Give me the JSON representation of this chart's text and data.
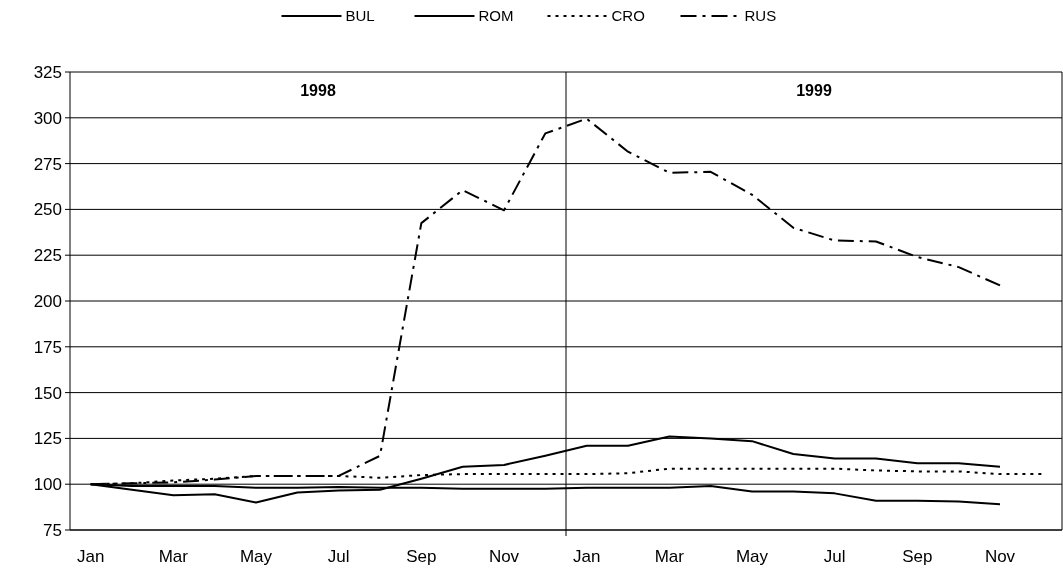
{
  "chart_data": {
    "type": "line",
    "categories": [
      "Jan",
      null,
      "Mar",
      null,
      "May",
      null,
      "Jul",
      null,
      "Sep",
      null,
      "Nov",
      null,
      "Jan",
      null,
      "Mar",
      null,
      "May",
      null,
      "Jul",
      null,
      "Sep",
      null,
      "Nov",
      null
    ],
    "series": [
      {
        "name": "BUL",
        "color": "#000000",
        "line_style": "solid",
        "values": [
          100,
          99,
          99,
          99,
          98,
          98,
          98.5,
          98,
          98,
          97.5,
          97.5,
          97.5,
          98,
          98,
          98,
          99,
          96,
          96,
          95,
          91,
          91,
          90.5,
          89,
          null
        ]
      },
      {
        "name": "ROM",
        "color": "#000000",
        "line_style": "solid",
        "values": [
          100,
          97,
          94,
          94.5,
          90,
          95.5,
          96.5,
          97,
          103,
          109.5,
          110.5,
          115.5,
          121,
          121,
          126,
          125,
          123.5,
          116.5,
          114,
          114,
          111.5,
          111.5,
          109.5,
          null
        ]
      },
      {
        "name": "CRO",
        "color": "#000000",
        "line_style": "dotted",
        "values": [
          100,
          100.5,
          102,
          103,
          104.5,
          104.5,
          104.5,
          103.5,
          105,
          105.5,
          105.5,
          105.5,
          105.5,
          106,
          108.5,
          108.5,
          108.5,
          108.5,
          108.5,
          107.5,
          107,
          107,
          105.5,
          105.5
        ]
      },
      {
        "name": "RUS",
        "color": "#000000",
        "line_style": "dashed",
        "values": [
          100,
          100.5,
          101,
          102.5,
          104.5,
          104.5,
          104.5,
          115.5,
          242.5,
          260.5,
          249.5,
          291.5,
          299.5,
          281.5,
          270,
          270.5,
          258,
          240,
          233,
          232.5,
          224,
          218.5,
          208.5,
          null
        ]
      }
    ],
    "ylim": [
      75,
      325
    ],
    "yticks": [
      75,
      100,
      125,
      150,
      175,
      200,
      225,
      250,
      275,
      300,
      325
    ],
    "grid": "y",
    "legend": "top",
    "annotations": [
      "1998",
      "1999"
    ]
  }
}
